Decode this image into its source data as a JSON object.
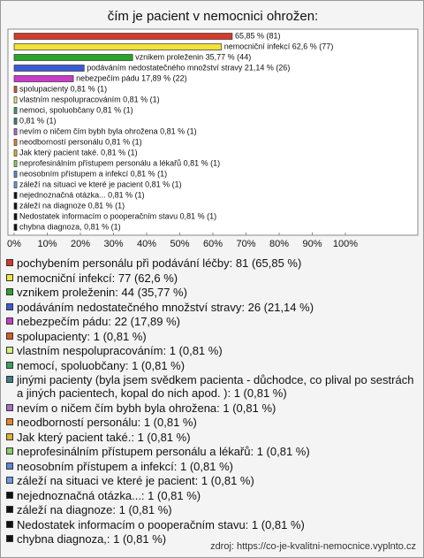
{
  "chart_data": {
    "type": "barh",
    "title": "čím je pacient v nemocnici ohrožen:",
    "values": [
      65.85,
      62.6,
      35.77,
      21.14,
      17.89,
      0.81,
      0.81,
      0.81,
      0.81,
      0.81,
      0.81,
      0.81,
      0.81,
      0.81,
      0.81,
      0.81,
      0.81,
      0.81,
      0.81
    ],
    "value_labels": [
      "65,85 % (81)",
      "nemocniční infekcí 62,6 % (77)",
      "vznikem proleženin 35,77 % (44)",
      "podáváním nedostatečného množství stravy 21,14 % (26)",
      "nebezpečím pádu 17,89 % (22)",
      "spolupacienty 0,81 % (1)",
      "vlastním nespolupracováním 0,81 % (1)",
      "nemoci, spoluobčany 0,81 % (1)",
      "0,81 % (1)",
      "nevím o ničem čím bybh byla ohrožena 0,81 % (1)",
      "neodborností personálu 0,81 % (1)",
      "Jak který pacient také. 0,81 % (1)",
      "neprofesinálním přístupem personálu a lékařů 0,81 % (1)",
      "neosobním přístupem a infekcí 0,81 % (1)",
      "záleží na situaci ve které je pacient 0,81 % (1)",
      "nejednoznačná otázka... 0,81 % (1)",
      "záleží na diagnoze 0,81 % (1)",
      "Nedostatek informacím o pooperačním stavu 0,81 % (1)",
      "chybna diagnoza, 0,81 % (1)"
    ],
    "colors": [
      "#d43a2a",
      "#f2e23a",
      "#2aa52a",
      "#3b5bd6",
      "#c83cc8",
      "#d85a2a",
      "#d6ee7a",
      "#3aa060",
      "#3a7f8a",
      "#a070d0",
      "#e8842a",
      "#e0b030",
      "#8ccc6a",
      "#5a8ad0",
      "#6a9ae0",
      "#111111",
      "#111111",
      "#111111",
      "#111111"
    ],
    "legend": [
      "pochybením personálu při podávání léčby: 81 (65,85 %)",
      "nemocniční infekcí: 77 (62,6 %)",
      "vznikem proleženin: 44 (35,77 %)",
      "podáváním nedostatečného množství stravy: 26 (21,14 %)",
      "nebezpečím pádu: 22 (17,89 %)",
      "spolupacienty: 1 (0,81 %)",
      "vlastním nespolupracováním: 1 (0,81 %)",
      "nemocí, spoluobčany: 1 (0,81 %)",
      "jinými pacienty (byla jsem svědkem pacienta - důchodce, co plival po sestrách a jiných pacientech, kopal do nich apod. ): 1 (0,81 %)",
      "nevím o ničem čím bybh byla ohrožena: 1 (0,81 %)",
      "neodborností personálu: 1 (0,81 %)",
      "Jak který pacient také.: 1 (0,81 %)",
      "neprofesinálním přístupem personálu a lékařů: 1 (0,81 %)",
      "neosobním přístupem a infekcí: 1 (0,81 %)",
      "záleží na situaci ve které je pacient: 1 (0,81 %)",
      "nejednoznačná otázka...: 1 (0,81 %)",
      "záleží na diagnoze: 1 (0,81 %)",
      "Nedostatek informacím o pooperačním stavu: 1 (0,81 %)",
      "chybna diagnoza,: 1 (0,81 %)"
    ],
    "xlim": [
      0,
      100
    ],
    "xticks": [
      {
        "value": 0,
        "label": "0%"
      },
      {
        "value": 10,
        "label": "10%"
      },
      {
        "value": 20,
        "label": "20%"
      },
      {
        "value": 30,
        "label": "30%"
      },
      {
        "value": 40,
        "label": "40%"
      },
      {
        "value": 50,
        "label": "50%"
      },
      {
        "value": 60,
        "label": "60%"
      },
      {
        "value": 70,
        "label": "70%"
      },
      {
        "value": 80,
        "label": "80%"
      },
      {
        "value": 90,
        "label": "90%"
      },
      {
        "value": 100,
        "label": "100%"
      }
    ],
    "source": "zdroj: https://co-je-kvalitni-nemocnice.vyplnto.cz"
  }
}
